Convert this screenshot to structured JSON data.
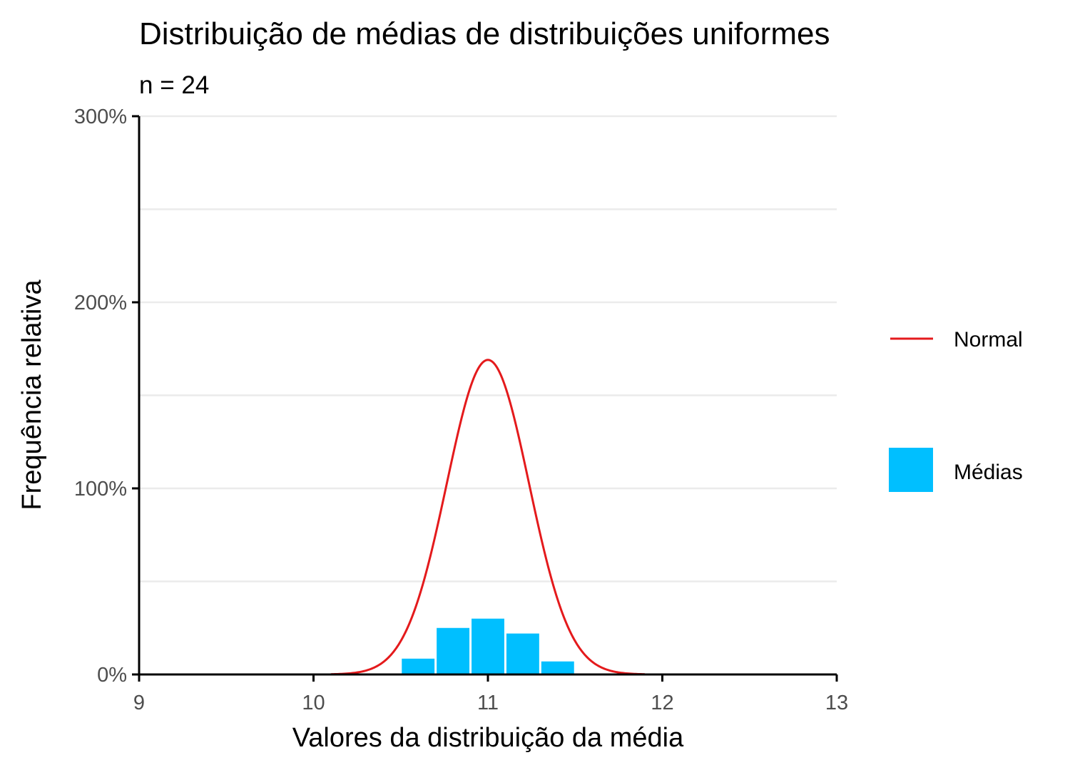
{
  "chart_data": {
    "type": "bar",
    "title": "Distribuição de médias de distribuições uniformes",
    "subtitle": "n = 24",
    "xlabel": "Valores da distribuição da média",
    "ylabel": "Frequência relativa",
    "xlim": [
      9,
      13
    ],
    "ylim": [
      0,
      3
    ],
    "x_ticks": [
      {
        "value": 9,
        "label": "9"
      },
      {
        "value": 10,
        "label": "10"
      },
      {
        "value": 11,
        "label": "11"
      },
      {
        "value": 12,
        "label": "12"
      },
      {
        "value": 13,
        "label": "13"
      }
    ],
    "y_ticks": [
      {
        "value": 0,
        "label": "0%"
      },
      {
        "value": 1,
        "label": "100%"
      },
      {
        "value": 2,
        "label": "200%"
      },
      {
        "value": 3,
        "label": "300%"
      }
    ],
    "y_minor_gridlines": [
      0.5,
      1.5,
      2.5
    ],
    "grid": true,
    "legend_position": "right",
    "series": [
      {
        "name": "Médias",
        "type": "bar",
        "color": "#00BFFF",
        "bin_width": 0.2,
        "x": [
          10.6,
          10.8,
          11.0,
          11.2,
          11.4
        ],
        "values": [
          0.085,
          0.25,
          0.3,
          0.22,
          0.07
        ]
      },
      {
        "name": "Normal",
        "type": "line",
        "color": "#E41A1C",
        "mean": 11.0,
        "sd": 0.236,
        "x_range": [
          10.1,
          11.9
        ]
      }
    ]
  }
}
